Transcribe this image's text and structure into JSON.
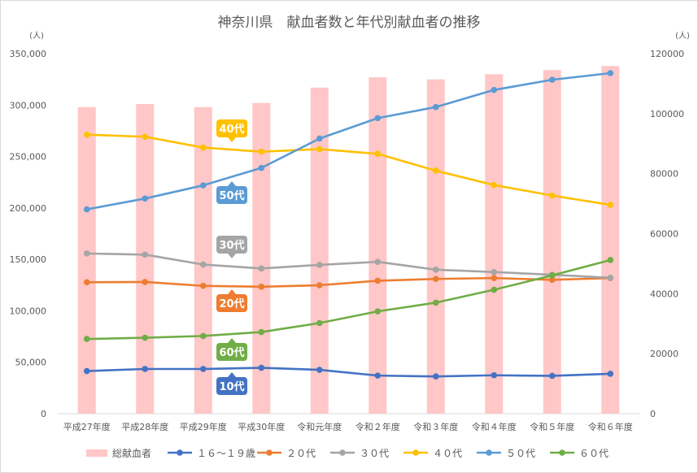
{
  "chart_data": {
    "type": "bar+line",
    "title": "神奈川県　献血者数と年代別献血者の推移",
    "y_left_unit": "(人)",
    "y_right_unit": "(人)",
    "y_left_range": [
      0,
      350000
    ],
    "y_left_ticks": [
      "0",
      "50,000",
      "100,000",
      "150,000",
      "200,000",
      "250,000",
      "300,000",
      "350,000"
    ],
    "y_right_range": [
      0,
      120000
    ],
    "y_right_ticks": [
      "0",
      "20000",
      "40000",
      "60000",
      "80000",
      "100000",
      "120000"
    ],
    "categories": [
      "平成27年度",
      "平成28年度",
      "平成29年度",
      "平成30年度",
      "令和元年度",
      "令和２年度",
      "令和３年度",
      "令和４年度",
      "令和５年度",
      "令和６年度"
    ],
    "bar_series": {
      "name": "総献血者",
      "color": "#ffc7c7",
      "values": [
        298000,
        301000,
        298000,
        302000,
        317000,
        327000,
        325000,
        330000,
        334000,
        338000
      ]
    },
    "line_series": [
      {
        "name": "１６～１９歳",
        "color": "#4472c4",
        "values": [
          14200,
          14900,
          14900,
          15300,
          14600,
          12700,
          12400,
          12800,
          12600,
          13300
        ]
      },
      {
        "name": "２０代",
        "color": "#ed7d31",
        "values": [
          43800,
          43900,
          42600,
          42300,
          42800,
          44300,
          44900,
          45200,
          44600,
          45200
        ]
      },
      {
        "name": "３０代",
        "color": "#a5a5a5",
        "values": [
          53400,
          53000,
          49700,
          48400,
          49600,
          50600,
          48000,
          47200,
          46300,
          45300
        ]
      },
      {
        "name": "４０代",
        "color": "#ffc000",
        "values": [
          93000,
          92300,
          88700,
          87300,
          88200,
          86600,
          81000,
          76200,
          72700,
          69600
        ]
      },
      {
        "name": "５０代",
        "color": "#5b9bd5",
        "values": [
          68100,
          71700,
          76100,
          81900,
          91700,
          98500,
          102200,
          107900,
          111300,
          113500
        ]
      },
      {
        "name": "６０代",
        "color": "#70ad47",
        "values": [
          24900,
          25300,
          25900,
          27200,
          30200,
          34100,
          37000,
          41300,
          46100,
          51200
        ]
      }
    ],
    "callouts": [
      {
        "text": "40代",
        "color": "#ffc000",
        "series": 3
      },
      {
        "text": "50代",
        "color": "#5b9bd5",
        "series": 4
      },
      {
        "text": "30代",
        "color": "#a5a5a5",
        "series": 2
      },
      {
        "text": "20代",
        "color": "#ed7d31",
        "series": 1
      },
      {
        "text": "60代",
        "color": "#70ad47",
        "series": 5
      },
      {
        "text": "10代",
        "color": "#4472c4",
        "series": 0
      }
    ],
    "grid": false,
    "legend_position": "bottom"
  }
}
